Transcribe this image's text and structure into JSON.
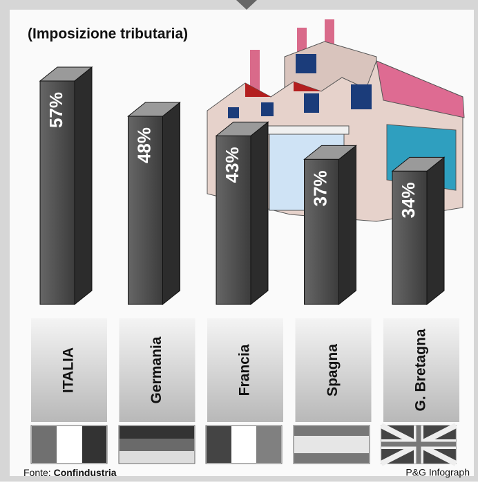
{
  "chart_data": {
    "type": "bar",
    "title": "(Imposizione tributaria)",
    "categories": [
      "ITALIA",
      "Germania",
      "Francia",
      "Spagna",
      "G. Bretagna"
    ],
    "values": [
      57,
      48,
      43,
      37,
      34
    ],
    "value_labels": [
      "57%",
      "48%",
      "43%",
      "37%",
      "34%"
    ],
    "color": "#4a4a4a",
    "source_label": "Fonte:",
    "source": "Confindustria",
    "credit": "P&G Infograph"
  }
}
